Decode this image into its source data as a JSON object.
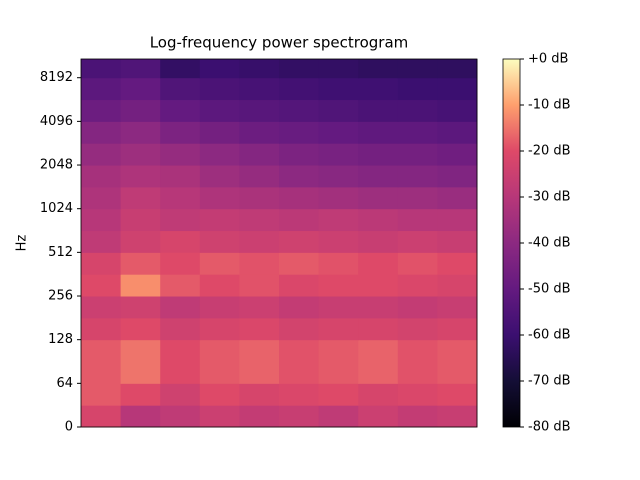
{
  "chart_data": {
    "type": "spectrogram",
    "title": "Log-frequency power spectrogram",
    "ylabel": "Hz",
    "yscale": "symlog",
    "linthresh": 64,
    "ylim": [
      0,
      11025
    ],
    "yticks": [
      0,
      64,
      128,
      256,
      512,
      1024,
      2048,
      4096,
      8192
    ],
    "colormap": "magma",
    "clim": [
      -80,
      0
    ],
    "cticks": [
      {
        "value": 0,
        "label": "+0 dB"
      },
      {
        "value": -10,
        "label": "-10 dB"
      },
      {
        "value": -20,
        "label": "-20 dB"
      },
      {
        "value": -30,
        "label": "-30 dB"
      },
      {
        "value": -40,
        "label": "-40 dB"
      },
      {
        "value": -50,
        "label": "-50 dB"
      },
      {
        "value": -60,
        "label": "-60 dB"
      },
      {
        "value": -70,
        "label": "-70 dB"
      },
      {
        "value": -80,
        "label": "-80 dB"
      }
    ],
    "y_edges": [
      0,
      32,
      64,
      128,
      181,
      256,
      362,
      512,
      724,
      1024,
      1448,
      2048,
      2896,
      4096,
      5793,
      8192,
      11025
    ],
    "values": [
      [
        -22,
        -30,
        -28,
        -25,
        -27,
        -26,
        -28,
        -25,
        -27,
        -26
      ],
      [
        -18,
        -20,
        -24,
        -20,
        -22,
        -21,
        -20,
        -22,
        -21,
        -20
      ],
      [
        -18,
        -15,
        -20,
        -18,
        -17,
        -19,
        -18,
        -17,
        -19,
        -18
      ],
      [
        -22,
        -20,
        -24,
        -22,
        -21,
        -23,
        -22,
        -22,
        -23,
        -22
      ],
      [
        -25,
        -24,
        -28,
        -26,
        -25,
        -27,
        -26,
        -26,
        -27,
        -26
      ],
      [
        -20,
        -12,
        -18,
        -20,
        -19,
        -21,
        -20,
        -20,
        -21,
        -22
      ],
      [
        -22,
        -18,
        -20,
        -18,
        -19,
        -18,
        -19,
        -20,
        -19,
        -20
      ],
      [
        -28,
        -24,
        -22,
        -24,
        -25,
        -24,
        -25,
        -26,
        -25,
        -26
      ],
      [
        -30,
        -26,
        -28,
        -27,
        -28,
        -29,
        -28,
        -29,
        -30,
        -30
      ],
      [
        -32,
        -28,
        -30,
        -32,
        -33,
        -34,
        -35,
        -36,
        -36,
        -37
      ],
      [
        -34,
        -32,
        -33,
        -36,
        -38,
        -40,
        -41,
        -42,
        -42,
        -43
      ],
      [
        -38,
        -36,
        -38,
        -40,
        -42,
        -44,
        -45,
        -46,
        -46,
        -47
      ],
      [
        -42,
        -40,
        -44,
        -46,
        -48,
        -49,
        -50,
        -51,
        -51,
        -52
      ],
      [
        -48,
        -46,
        -50,
        -52,
        -53,
        -54,
        -55,
        -56,
        -56,
        -57
      ],
      [
        -52,
        -50,
        -55,
        -56,
        -57,
        -58,
        -59,
        -59,
        -60,
        -60
      ],
      [
        -56,
        -55,
        -62,
        -60,
        -61,
        -62,
        -62,
        -63,
        -63,
        -63
      ]
    ]
  }
}
